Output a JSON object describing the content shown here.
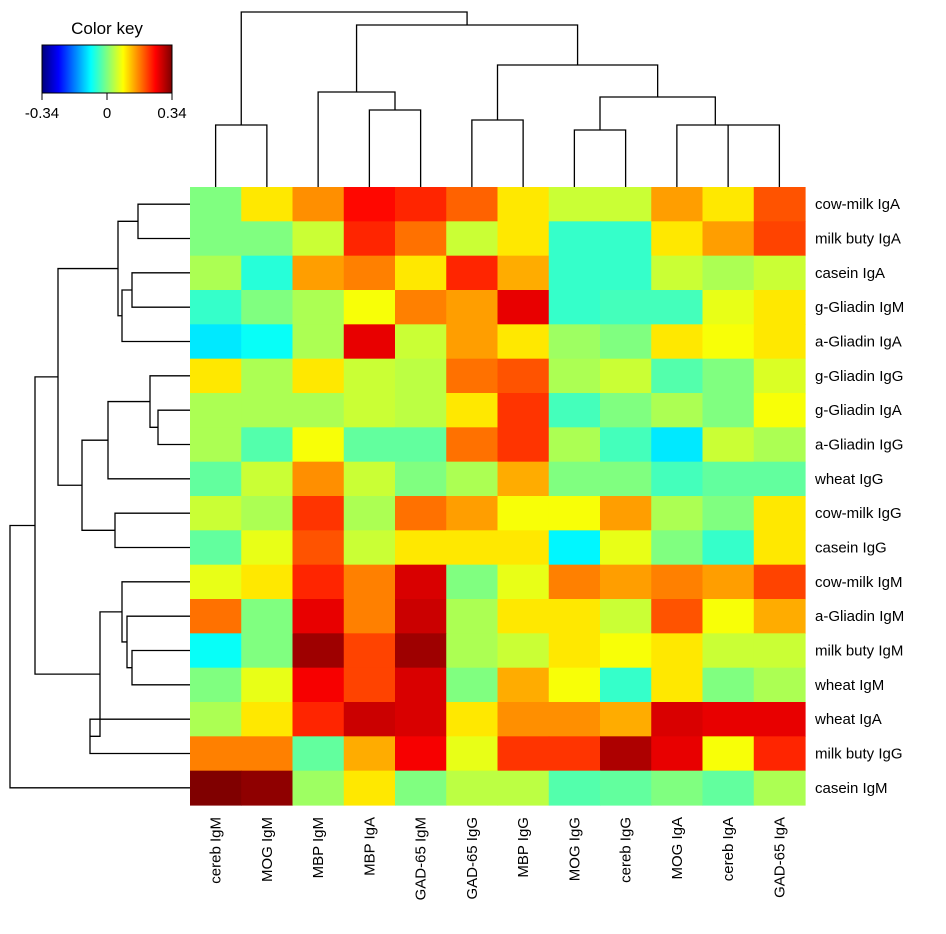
{
  "chart_data": {
    "type": "heatmap",
    "title": "",
    "color_key": {
      "title": "Color key",
      "ticks": [
        "-0.34",
        "0",
        "0.34"
      ],
      "range": [
        -0.34,
        0.34
      ],
      "colormap": "jet"
    },
    "columns": [
      "cereb IgM",
      "MOG IgM",
      "MBP IgM",
      "MBP IgA",
      "GAD-65 IgM",
      "GAD-65 IgG",
      "MBP IgG",
      "MOG IgG",
      "cereb IgG",
      "MOG IgA",
      "cereb IgA",
      "GAD-65 IgA"
    ],
    "rows": [
      "cow-milk IgA",
      "milk buty IgA",
      "casein IgA",
      "g-Gliadin IgM",
      "a-Gliadin IgA",
      "g-Gliadin IgG",
      "g-Gliadin IgA",
      "a-Gliadin IgG",
      "wheat IgG",
      "cow-milk IgG",
      "casein IgG",
      "cow-milk IgM",
      "a-Gliadin IgM",
      "milk buty IgM",
      "wheat IgM",
      "wheat IgA",
      "milk buty IgG",
      "casein IgM"
    ],
    "values": [
      [
        0.0,
        0.1,
        0.16,
        0.25,
        0.23,
        0.19,
        0.1,
        0.05,
        0.05,
        0.15,
        0.1,
        0.2
      ],
      [
        0.0,
        0.0,
        0.05,
        0.23,
        0.18,
        0.05,
        0.1,
        -0.05,
        -0.05,
        0.1,
        0.15,
        0.21
      ],
      [
        0.03,
        -0.06,
        0.15,
        0.17,
        0.1,
        0.23,
        0.14,
        -0.05,
        -0.05,
        0.05,
        0.03,
        0.05
      ],
      [
        -0.05,
        0.0,
        0.03,
        0.08,
        0.17,
        0.15,
        0.27,
        -0.05,
        -0.04,
        -0.04,
        0.07,
        0.1
      ],
      [
        -0.1,
        -0.08,
        0.03,
        0.27,
        0.05,
        0.15,
        0.1,
        0.02,
        0.0,
        0.1,
        0.08,
        0.1
      ],
      [
        0.1,
        0.03,
        0.1,
        0.05,
        0.04,
        0.18,
        0.2,
        0.03,
        0.05,
        -0.03,
        0.0,
        0.06
      ],
      [
        0.03,
        0.03,
        0.03,
        0.05,
        0.04,
        0.1,
        0.22,
        -0.04,
        0.0,
        0.03,
        0.0,
        0.08
      ],
      [
        0.03,
        -0.03,
        0.08,
        -0.02,
        -0.02,
        0.18,
        0.22,
        0.03,
        -0.04,
        -0.1,
        0.05,
        0.03
      ],
      [
        -0.02,
        0.05,
        0.16,
        0.05,
        0.0,
        0.03,
        0.14,
        0.0,
        0.0,
        -0.04,
        -0.02,
        -0.02
      ],
      [
        0.05,
        0.03,
        0.22,
        0.03,
        0.18,
        0.15,
        0.08,
        0.08,
        0.15,
        0.03,
        0.0,
        0.1
      ],
      [
        -0.02,
        0.07,
        0.2,
        0.05,
        0.1,
        0.1,
        0.1,
        -0.09,
        0.07,
        0.0,
        -0.05,
        0.1
      ],
      [
        0.07,
        0.1,
        0.23,
        0.17,
        0.28,
        0.0,
        0.07,
        0.17,
        0.15,
        0.17,
        0.15,
        0.21
      ],
      [
        0.18,
        0.0,
        0.27,
        0.17,
        0.29,
        0.03,
        0.1,
        0.1,
        0.05,
        0.2,
        0.08,
        0.14
      ],
      [
        -0.08,
        0.0,
        0.32,
        0.21,
        0.32,
        0.03,
        0.05,
        0.1,
        0.08,
        0.1,
        0.05,
        0.05
      ],
      [
        0.0,
        0.07,
        0.26,
        0.21,
        0.28,
        0.0,
        0.14,
        0.08,
        -0.05,
        0.1,
        0.0,
        0.03
      ],
      [
        0.03,
        0.1,
        0.23,
        0.29,
        0.28,
        0.1,
        0.16,
        0.16,
        0.14,
        0.28,
        0.27,
        0.27
      ],
      [
        0.17,
        0.17,
        -0.02,
        0.14,
        0.26,
        0.07,
        0.22,
        0.22,
        0.31,
        0.27,
        0.08,
        0.23
      ],
      [
        0.34,
        0.33,
        0.02,
        0.1,
        0.0,
        0.04,
        0.04,
        -0.03,
        -0.02,
        0.0,
        -0.02,
        0.03
      ]
    ]
  }
}
